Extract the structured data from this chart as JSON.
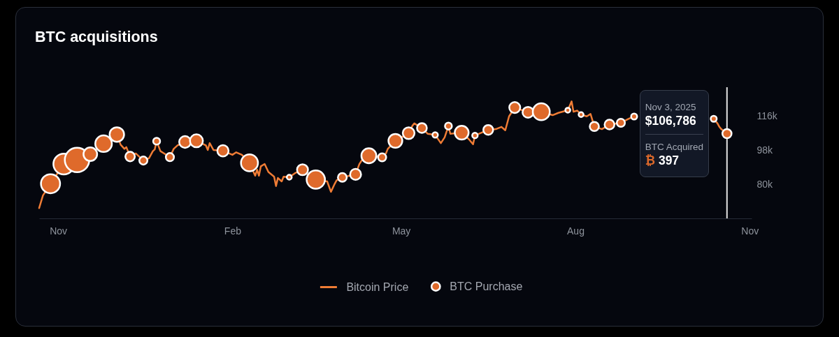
{
  "chart_data": {
    "type": "line",
    "title": "BTC acquisitions",
    "series": [
      {
        "name": "Bitcoin Price",
        "type": "line",
        "color": "#ef7c35",
        "x": [
          "2024-11-05",
          "2024-11-07",
          "2024-11-11",
          "2024-11-18",
          "2024-11-25",
          "2024-12-02",
          "2024-12-09",
          "2024-12-16",
          "2024-12-18",
          "2024-12-20",
          "2024-12-21",
          "2024-12-23",
          "2024-12-26",
          "2024-12-30",
          "2025-01-02",
          "2025-01-04",
          "2025-01-05",
          "2025-01-06",
          "2025-01-08",
          "2025-01-10",
          "2025-01-13",
          "2025-01-15",
          "2025-01-17",
          "2025-01-21",
          "2025-01-27",
          "2025-02-01",
          "2025-02-02",
          "2025-02-03",
          "2025-02-05",
          "2025-02-10",
          "2025-02-15",
          "2025-02-17",
          "2025-02-20",
          "2025-02-24",
          "2025-02-27",
          "2025-02-28",
          "2025-03-01",
          "2025-03-02",
          "2025-03-04",
          "2025-03-06",
          "2025-03-09",
          "2025-03-10",
          "2025-03-11",
          "2025-03-13",
          "2025-03-14",
          "2025-03-17",
          "2025-03-20",
          "2025-03-24",
          "2025-03-28",
          "2025-03-31",
          "2025-04-06",
          "2025-04-08",
          "2025-04-10",
          "2025-04-11",
          "2025-04-14",
          "2025-04-21",
          "2025-04-23",
          "2025-04-25",
          "2025-04-28",
          "2025-05-05",
          "2025-05-07",
          "2025-05-08",
          "2025-05-12",
          "2025-05-19",
          "2025-05-21",
          "2025-05-22",
          "2025-05-26",
          "2025-05-29",
          "2025-06-02",
          "2025-06-05",
          "2025-06-07",
          "2025-06-09",
          "2025-06-10",
          "2025-06-16",
          "2025-06-20",
          "2025-06-22",
          "2025-06-23",
          "2025-06-30",
          "2025-07-04",
          "2025-07-07",
          "2025-07-09",
          "2025-07-11",
          "2025-07-14",
          "2025-07-21",
          "2025-07-28",
          "2025-08-03",
          "2025-08-06",
          "2025-08-11",
          "2025-08-13",
          "2025-08-14",
          "2025-08-16",
          "2025-08-18",
          "2025-08-21",
          "2025-08-23",
          "2025-08-25",
          "2025-08-29",
          "2025-09-02",
          "2025-09-08",
          "2025-09-12",
          "2025-09-15",
          "2025-10-06",
          "2025-10-27",
          "2025-10-29",
          "2025-10-30",
          "2025-10-31",
          "2025-11-03"
        ],
        "values": [
          67900,
          74500,
          80600,
          90900,
          93000,
          96000,
          101500,
          106300,
          101000,
          98800,
          99700,
          94800,
          96400,
          92700,
          94000,
          97600,
          98500,
          102800,
          97600,
          96400,
          94500,
          98800,
          100600,
          102400,
          103000,
          100600,
          98200,
          101800,
          98200,
          97800,
          95700,
          97000,
          95700,
          91500,
          84800,
          87900,
          84800,
          89700,
          90900,
          86700,
          84300,
          79400,
          83600,
          81800,
          84300,
          84000,
          86100,
          87900,
          84300,
          82800,
          81800,
          76400,
          80600,
          82400,
          83900,
          85500,
          90900,
          94000,
          95200,
          94400,
          96400,
          98800,
          103000,
          107000,
          110900,
          112100,
          109700,
          106700,
          106100,
          101800,
          104800,
          110700,
          106700,
          107300,
          103600,
          101200,
          105800,
          108700,
          109100,
          110300,
          108500,
          115800,
          120400,
          117900,
          118200,
          116400,
          117600,
          119000,
          123600,
          118200,
          118800,
          116700,
          115800,
          117000,
          110500,
          109100,
          111500,
          112400,
          114500,
          115700,
          null,
          114500,
          112100,
          110300,
          109100,
          106786
        ]
      },
      {
        "name": "BTC Purchase",
        "type": "bubble",
        "color": "#df6a2b",
        "x": [
          "2024-11-11",
          "2024-11-18",
          "2024-11-25",
          "2024-12-02",
          "2024-12-09",
          "2024-12-16",
          "2024-12-23",
          "2024-12-30",
          "2025-01-06",
          "2025-01-13",
          "2025-01-21",
          "2025-01-27",
          "2025-02-10",
          "2025-02-24",
          "2025-03-17",
          "2025-03-24",
          "2025-03-31",
          "2025-04-14",
          "2025-04-21",
          "2025-04-28",
          "2025-05-05",
          "2025-05-12",
          "2025-05-19",
          "2025-05-26",
          "2025-06-02",
          "2025-06-09",
          "2025-06-16",
          "2025-06-23",
          "2025-06-30",
          "2025-07-14",
          "2025-07-21",
          "2025-07-28",
          "2025-08-11",
          "2025-08-18",
          "2025-08-25",
          "2025-09-02",
          "2025-09-08",
          "2025-09-15",
          "2025-10-27",
          "2025-11-03"
        ],
        "values": [
          80600,
          90900,
          93000,
          96000,
          101500,
          106300,
          94800,
          92700,
          102800,
          94500,
          102400,
          103000,
          97800,
          91500,
          84000,
          87900,
          82800,
          83900,
          85500,
          95200,
          94400,
          103000,
          107000,
          109700,
          106100,
          110700,
          107300,
          105800,
          108700,
          120400,
          117900,
          118200,
          119000,
          116700,
          110500,
          111500,
          112400,
          115700,
          114500,
          106786
        ],
        "sizes": [
          0.61,
          0.72,
          1,
          0.31,
          0.46,
          0.35,
          0.15,
          0.11,
          0.08,
          0.11,
          0.23,
          0.28,
          0.21,
          0.48,
          0.04,
          0.2,
          0.56,
          0.13,
          0.2,
          0.37,
          0.11,
          0.32,
          0.23,
          0.16,
          0.05,
          0.08,
          0.32,
          0.05,
          0.16,
          0.2,
          0.2,
          0.48,
          0.04,
          0.04,
          0.14,
          0.16,
          0.11,
          0.06,
          0.06,
          0.14
        ]
      }
    ],
    "xlim": [
      "2024-11-05",
      "2025-11-16"
    ],
    "xticks": [
      {
        "value": "2024-11-15",
        "label": "Nov"
      },
      {
        "value": "2025-02-15",
        "label": "Feb"
      },
      {
        "value": "2025-05-15",
        "label": "May"
      },
      {
        "value": "2025-08-15",
        "label": "Aug"
      },
      {
        "value": "2025-11-15",
        "label": "Nov"
      }
    ],
    "ylim": [
      62500,
      131000
    ],
    "yticks": [
      {
        "value": 80000,
        "label": "80k"
      },
      {
        "value": 98000,
        "label": "98k"
      },
      {
        "value": 116000,
        "label": "116k"
      }
    ],
    "ref_lines": [
      {
        "axis": "x",
        "value": "2025-11-03",
        "color": "#e4e4e4"
      }
    ],
    "annotations": [
      "Nov 3, 2025",
      {
        "text": "$106,786",
        "x": "2025-11-03",
        "y": 106786
      },
      "BTC Acquired",
      "₿ 397"
    ],
    "legend": "bottom"
  }
}
